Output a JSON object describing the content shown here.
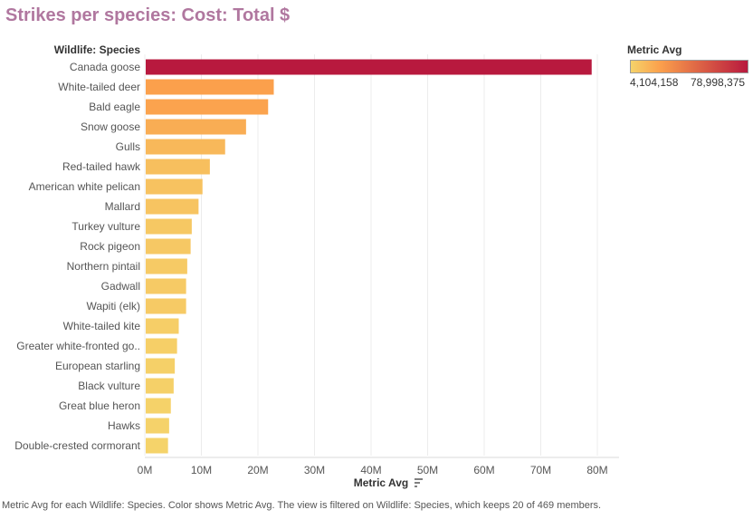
{
  "title": "Strikes per species: Cost: Total $",
  "colors": {
    "title": "#b0779f",
    "scale_low": "#f5d36a",
    "scale_mid": "#fba04c",
    "scale_high": "#b8193e"
  },
  "legend": {
    "title": "Metric Avg",
    "min_label": "4,104,158",
    "max_label": "78,998,375",
    "min_value": 4104158,
    "max_value": 78998375
  },
  "caption": "Metric Avg for each Wildlife: Species.  Color shows Metric Avg. The view is filtered on Wildlife: Species, which keeps 20 of 469 members.",
  "sort_icon": "sort-descending-icon",
  "chart_data": {
    "type": "bar",
    "orientation": "horizontal",
    "title": "Strikes per species: Cost: Total $",
    "row_header": "Wildlife: Species",
    "xlabel": "Metric Avg",
    "xlim": [
      0,
      80000000
    ],
    "ticks": [
      {
        "value": 0,
        "label": "0M"
      },
      {
        "value": 10000000,
        "label": "10M"
      },
      {
        "value": 20000000,
        "label": "20M"
      },
      {
        "value": 30000000,
        "label": "30M"
      },
      {
        "value": 40000000,
        "label": "40M"
      },
      {
        "value": 50000000,
        "label": "50M"
      },
      {
        "value": 60000000,
        "label": "60M"
      },
      {
        "value": 70000000,
        "label": "70M"
      },
      {
        "value": 80000000,
        "label": "80M"
      }
    ],
    "grid": true,
    "categories": [
      "Canada goose",
      "White-tailed deer",
      "Bald eagle",
      "Snow goose",
      "Gulls",
      "Red-tailed hawk",
      "American white pelican",
      "Mallard",
      "Turkey vulture",
      "Rock pigeon",
      "Northern pintail",
      "Gadwall",
      "Wapiti (elk)",
      "White-tailed kite",
      "Greater white-fronted go..",
      "European starling",
      "Black vulture",
      "Great blue heron",
      "Hawks",
      "Double-crested cormorant"
    ],
    "values": [
      78998375,
      22800000,
      21800000,
      17900000,
      14200000,
      11500000,
      10200000,
      9500000,
      8300000,
      8100000,
      7500000,
      7300000,
      7300000,
      6000000,
      5700000,
      5300000,
      5100000,
      4600000,
      4300000,
      4104158
    ]
  }
}
